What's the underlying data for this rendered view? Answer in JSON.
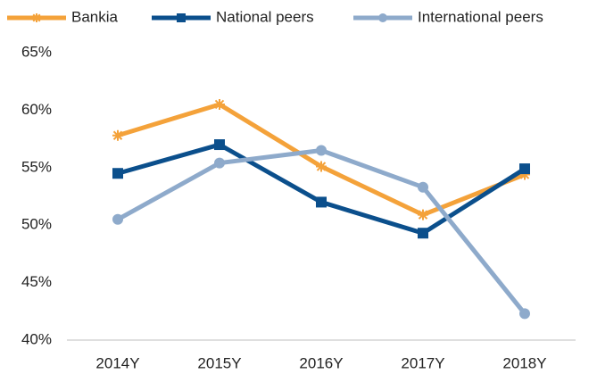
{
  "chart_data": {
    "type": "line",
    "categories": [
      "2014Y",
      "2015Y",
      "2016Y",
      "2017Y",
      "2018Y"
    ],
    "series": [
      {
        "name": "Bankia",
        "color": "#f4a23a",
        "marker": "star",
        "values": [
          57.8,
          60.5,
          55.1,
          50.9,
          54.4
        ]
      },
      {
        "name": "National peers",
        "color": "#0b4f8c",
        "marker": "square",
        "values": [
          54.5,
          57.0,
          52.0,
          49.3,
          54.9
        ]
      },
      {
        "name": "International peers",
        "color": "#8eaacb",
        "marker": "circle",
        "values": [
          50.5,
          55.4,
          56.5,
          53.3,
          42.3
        ]
      }
    ],
    "ylim": [
      40,
      65
    ],
    "yticks": [
      {
        "value": 40,
        "label": "40%"
      },
      {
        "value": 45,
        "label": "45%"
      },
      {
        "value": 50,
        "label": "50%"
      },
      {
        "value": 55,
        "label": "55%"
      },
      {
        "value": 60,
        "label": "60%"
      },
      {
        "value": 65,
        "label": "65%"
      }
    ],
    "grid": false,
    "legend": "top"
  }
}
